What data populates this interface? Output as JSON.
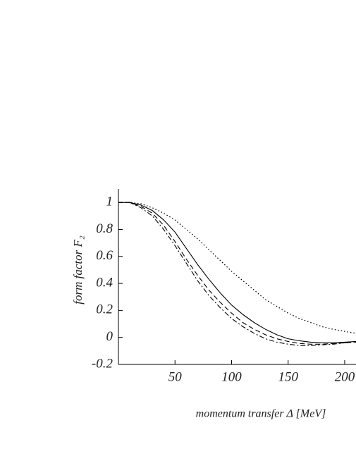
{
  "chart_data": {
    "type": "line",
    "xlabel": "momentum transfer Δ [MeV]",
    "ylabel": "form factor F₂",
    "x": [
      0,
      10,
      20,
      30,
      40,
      50,
      60,
      70,
      80,
      90,
      100,
      110,
      120,
      130,
      140,
      150,
      160,
      170,
      180,
      190,
      200,
      210
    ],
    "series": [
      {
        "color": "#000000",
        "style": "solid",
        "values": [
          1,
          1,
          0.98,
          0.94,
          0.87,
          0.78,
          0.66,
          0.54,
          0.43,
          0.33,
          0.24,
          0.17,
          0.11,
          0.06,
          0.02,
          -0.01,
          -0.025,
          -0.035,
          -0.04,
          -0.04,
          -0.035,
          -0.03
        ]
      },
      {
        "color": "#000000",
        "style": "dashed",
        "values": [
          1,
          1,
          0.97,
          0.92,
          0.83,
          0.71,
          0.58,
          0.46,
          0.35,
          0.26,
          0.18,
          0.11,
          0.06,
          0.02,
          -0.01,
          -0.03,
          -0.045,
          -0.05,
          -0.05,
          -0.045,
          -0.04,
          -0.035
        ]
      },
      {
        "color": "#000000",
        "style": "dashdot",
        "values": [
          1,
          1,
          0.96,
          0.9,
          0.8,
          0.68,
          0.55,
          0.42,
          0.31,
          0.22,
          0.14,
          0.08,
          0.03,
          -0.01,
          -0.035,
          -0.05,
          -0.06,
          -0.06,
          -0.055,
          -0.05,
          -0.04,
          -0.03
        ]
      },
      {
        "color": "#000000",
        "style": "dotted",
        "values": [
          1,
          1,
          0.99,
          0.96,
          0.92,
          0.87,
          0.8,
          0.73,
          0.65,
          0.57,
          0.49,
          0.42,
          0.35,
          0.28,
          0.23,
          0.18,
          0.14,
          0.11,
          0.08,
          0.06,
          0.045,
          0.03
        ]
      }
    ],
    "xlim": [
      0,
      210
    ],
    "xticks": [
      50,
      100,
      150,
      200
    ],
    "ylim": [
      -0.2,
      1.1
    ],
    "yticks": [
      -0.2,
      0,
      0.2,
      0.4,
      0.6,
      0.8,
      1
    ]
  }
}
